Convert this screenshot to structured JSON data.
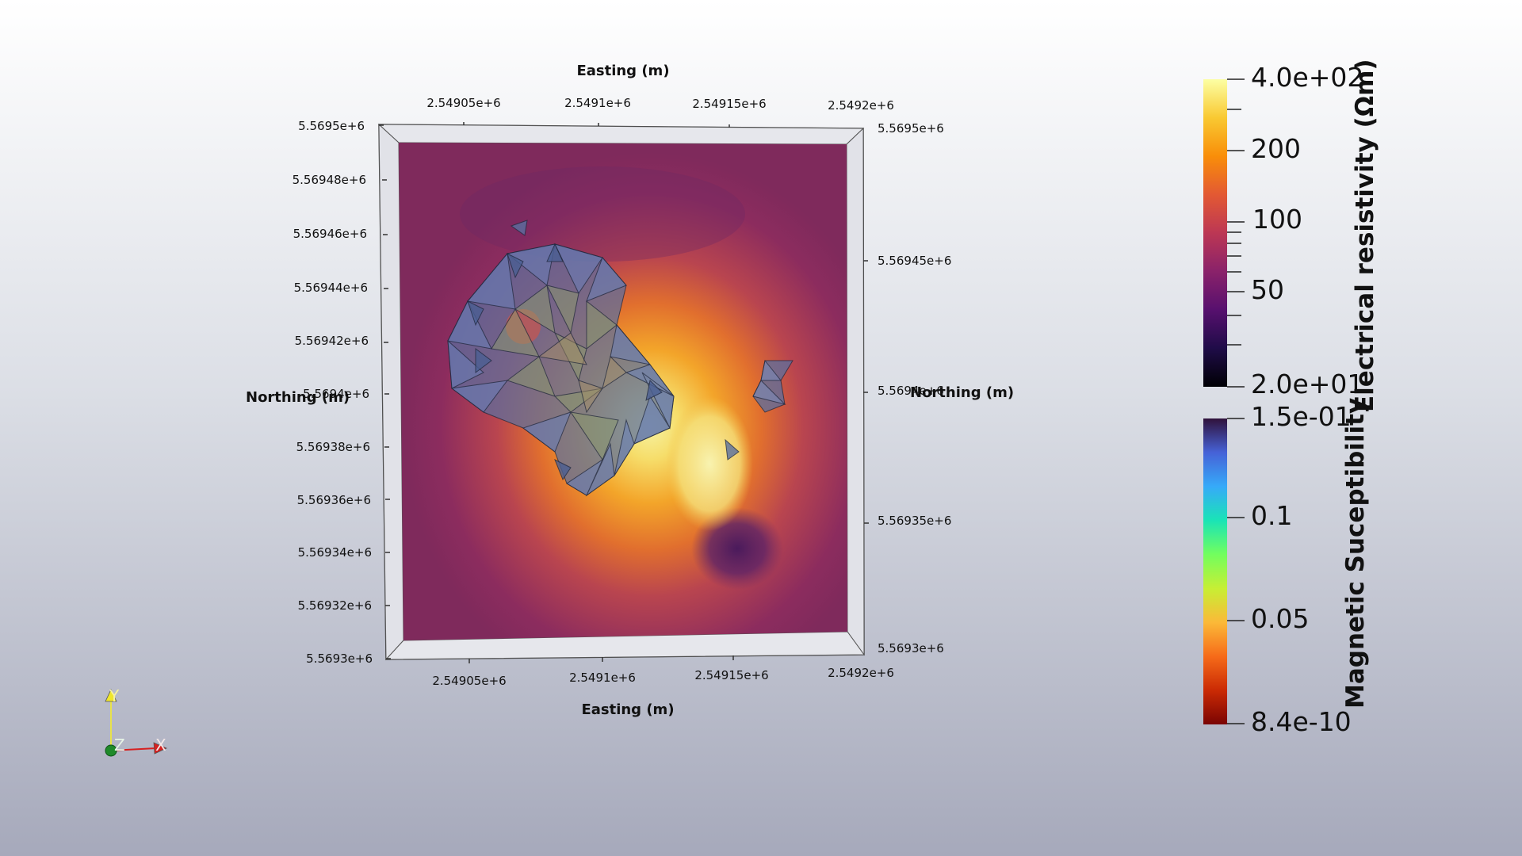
{
  "axes": {
    "top_title": "Easting (m)",
    "bottom_title": "Easting (m)",
    "left_title": "Northing (m)",
    "right_title": "Northing (m)",
    "top_ticks": [
      "2.54905e+6",
      "2.5491e+6",
      "2.54915e+6",
      "2.5492e+6"
    ],
    "bottom_ticks": [
      "2.54905e+6",
      "2.5491e+6",
      "2.54915e+6",
      "2.5492e+6"
    ],
    "left_ticks": [
      "5.5695e+6",
      "5.56948e+6",
      "5.56946e+6",
      "5.56944e+6",
      "5.56942e+6",
      "5.5694e+6",
      "5.56938e+6",
      "5.56936e+6",
      "5.56934e+6",
      "5.56932e+6",
      "5.5693e+6"
    ],
    "right_ticks": [
      "5.5695e+6",
      "5.56945e+6",
      "5.5694e+6",
      "5.56935e+6",
      "5.5693e+6"
    ]
  },
  "colorbars": {
    "resistivity": {
      "title": "Electrical resistivity (Ωm)",
      "colormap": "inferno",
      "ticks": [
        "4.0e+02",
        "200",
        "100",
        "50",
        "2.0e+01"
      ],
      "stops": [
        "#fcffa4",
        "#f9c932",
        "#f98e09",
        "#e35933",
        "#bc3754",
        "#8a226a",
        "#57106e",
        "#1f0c48",
        "#000004"
      ]
    },
    "susceptibility": {
      "title": "Magnetic Suceptibility",
      "colormap": "turbo",
      "ticks": [
        "1.5e-01",
        "0.1",
        "0.05",
        "8.4e-10"
      ],
      "stops": [
        "#30123b",
        "#4662d7",
        "#36aaf9",
        "#1ae4b6",
        "#72fe5e",
        "#c7ef34",
        "#fbb938",
        "#f66b19",
        "#ca2a04",
        "#7a0403"
      ]
    }
  },
  "orientation_axes": {
    "y": "Y",
    "x": "X",
    "z": "Z"
  }
}
